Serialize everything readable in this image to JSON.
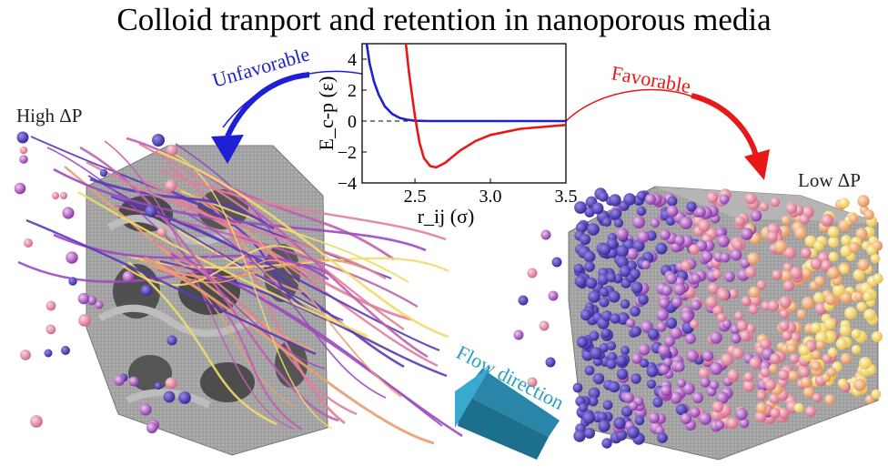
{
  "title": "Colloid tranport and retention in nanoporous media",
  "left_label": "High ΔP",
  "right_label": "Low ΔP",
  "unfavorable_label": "Unfavorable",
  "favorable_label": "Favorable",
  "flow_label": "Flow direction",
  "colors": {
    "unfavorable": "#1f1fd6",
    "favorable": "#e81818",
    "flow": "#2a9ec2",
    "porous_media": "#9a9a9a"
  },
  "chart_data": {
    "type": "line",
    "title": "",
    "xlabel": "r_ij (σ)",
    "ylabel": "E_c-p (ε)",
    "xlim": [
      2.15,
      3.5
    ],
    "ylim": [
      -4,
      5
    ],
    "x_ticks": [
      "2.5",
      "3.0",
      "3.5"
    ],
    "y_ticks": [
      "4",
      "2",
      "0",
      "−2",
      "−4"
    ],
    "zero_line": "dashed",
    "series": [
      {
        "color": "#1f1fd6",
        "x": [
          2.18,
          2.2,
          2.23,
          2.26,
          2.3,
          2.35,
          2.4,
          2.45,
          2.5,
          2.6,
          2.8,
          3.0,
          3.5
        ],
        "y": [
          5.0,
          3.7,
          2.5,
          1.7,
          0.95,
          0.45,
          0.2,
          0.08,
          0.02,
          0.0,
          0.0,
          0.0,
          0.0
        ]
      },
      {
        "color": "#e81818",
        "x": [
          2.44,
          2.46,
          2.48,
          2.5,
          2.53,
          2.56,
          2.6,
          2.64,
          2.7,
          2.8,
          2.9,
          3.0,
          3.2,
          3.5
        ],
        "y": [
          5.0,
          3.2,
          1.7,
          0.3,
          -1.4,
          -2.4,
          -2.9,
          -3.0,
          -2.7,
          -1.9,
          -1.3,
          -0.9,
          -0.5,
          -0.25
        ]
      }
    ]
  }
}
